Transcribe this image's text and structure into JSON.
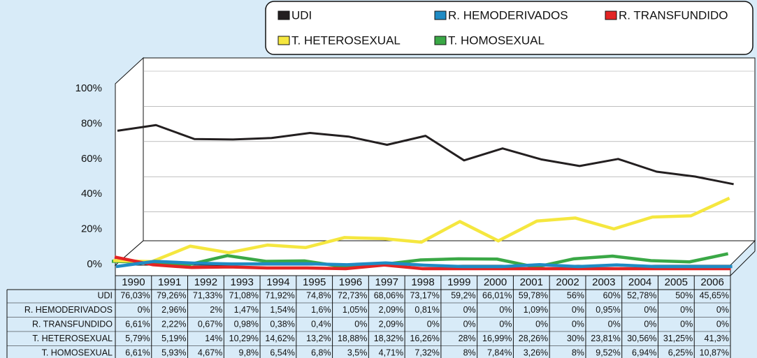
{
  "chart_data": {
    "type": "line",
    "categories": [
      "1990",
      "1991",
      "1992",
      "1993",
      "1994",
      "1995",
      "1996",
      "1997",
      "1998",
      "1999",
      "2000",
      "2001",
      "2002",
      "2003",
      "2004",
      "2005",
      "2006"
    ],
    "ylim": [
      0,
      100
    ],
    "yticks": [
      {
        "value": 0,
        "label": "0%"
      },
      {
        "value": 20,
        "label": "20%"
      },
      {
        "value": 40,
        "label": "40%"
      },
      {
        "value": 60,
        "label": "60%"
      },
      {
        "value": 80,
        "label": "80%"
      },
      {
        "value": 100,
        "label": "100%"
      }
    ],
    "grid": true,
    "series": [
      {
        "name": "UDI",
        "color": "#231f20",
        "values": [
          76.03,
          79.26,
          71.33,
          71.08,
          71.92,
          74.8,
          72.73,
          68.06,
          73.17,
          59.2,
          66.01,
          59.78,
          56,
          60,
          52.78,
          50,
          45.65
        ],
        "value_labels": [
          "76,03%",
          "79,26%",
          "71,33%",
          "71,08%",
          "71,92%",
          "74,8%",
          "72,73%",
          "68,06%",
          "73,17%",
          "59,2%",
          "66,01%",
          "59,78%",
          "56%",
          "60%",
          "52,78%",
          "50%",
          "45,65%"
        ]
      },
      {
        "name": "R. HEMODERIVADOS",
        "color": "#1f8bc4",
        "values": [
          0,
          2.96,
          2,
          1.47,
          1.54,
          1.6,
          1.05,
          2.09,
          0.81,
          0,
          0,
          1.09,
          0,
          0.95,
          0,
          0,
          0
        ],
        "value_labels": [
          "0%",
          "2,96%",
          "2%",
          "1,47%",
          "1,54%",
          "1,6%",
          "1,05%",
          "2,09%",
          "0,81%",
          "0%",
          "0%",
          "1,09%",
          "0%",
          "0,95%",
          "0%",
          "0%",
          "0%"
        ]
      },
      {
        "name": "R. TRANSFUNDIDO",
        "color": "#e32424",
        "values": [
          6.61,
          2.22,
          0.67,
          0.98,
          0.38,
          0.4,
          0,
          2.09,
          0,
          0,
          0,
          0,
          0,
          0,
          0,
          0,
          0
        ],
        "value_labels": [
          "6,61%",
          "2,22%",
          "0,67%",
          "0,98%",
          "0,38%",
          "0,4%",
          "0%",
          "2,09%",
          "0%",
          "0%",
          "0%",
          "0%",
          "0%",
          "0%",
          "0%",
          "0%",
          "0%"
        ]
      },
      {
        "name": "T. HETEROSEXUAL",
        "color": "#f5e73f",
        "values": [
          5.79,
          5.19,
          14,
          10.29,
          14.62,
          13.2,
          18.88,
          18.32,
          16.26,
          28,
          16.99,
          28.26,
          30,
          23.81,
          30.56,
          31.25,
          41.3
        ],
        "value_labels": [
          "5,79%",
          "5,19%",
          "14%",
          "10,29%",
          "14,62%",
          "13,2%",
          "18,88%",
          "18,32%",
          "16,26%",
          "28%",
          "16,99%",
          "28,26%",
          "30%",
          "23,81%",
          "30,56%",
          "31,25%",
          "41,3%"
        ]
      },
      {
        "name": "T. HOMOSEXUAL",
        "color": "#3aa846",
        "values": [
          6.61,
          5.93,
          4.67,
          9.8,
          6.54,
          6.8,
          3.5,
          4.71,
          7.32,
          8,
          7.84,
          3.26,
          8,
          9.52,
          6.94,
          6.25,
          10.87
        ],
        "value_labels": [
          "6,61%",
          "5,93%",
          "4,67%",
          "9,8%",
          "6,54%",
          "6,8%",
          "3,5%",
          "4,71%",
          "7,32%",
          "8%",
          "7,84%",
          "3,26%",
          "8%",
          "9,52%",
          "6,94%",
          "6,25%",
          "10,87%"
        ]
      }
    ]
  }
}
